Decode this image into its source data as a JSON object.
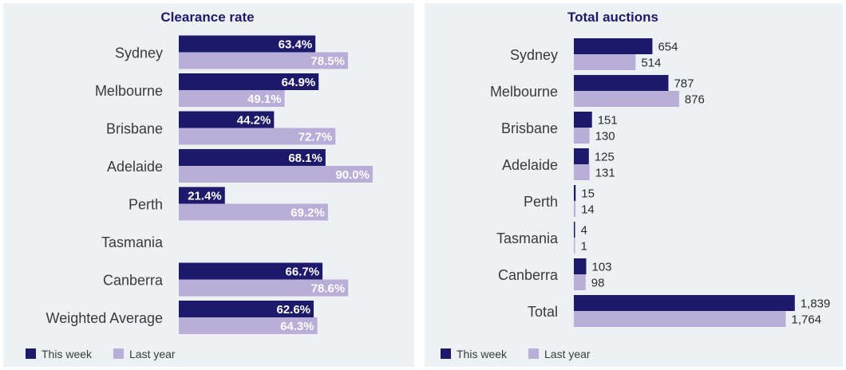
{
  "colors": {
    "this_week": "#1d1a6b",
    "last_year": "#b9aed8"
  },
  "legend": {
    "this_week": "This week",
    "last_year": "Last year"
  },
  "chart_data": [
    {
      "type": "bar",
      "orientation": "horizontal",
      "title": "Clearance rate",
      "categories": [
        "Sydney",
        "Melbourne",
        "Brisbane",
        "Adelaide",
        "Perth",
        "Tasmania",
        "Canberra",
        "Weighted Average"
      ],
      "series": [
        {
          "name": "This week",
          "values": [
            63.4,
            64.9,
            44.2,
            68.1,
            21.4,
            null,
            66.7,
            62.6
          ],
          "labels": [
            "63.4%",
            "64.9%",
            "44.2%",
            "68.1%",
            "21.4%",
            "",
            "66.7%",
            "62.6%"
          ]
        },
        {
          "name": "Last year",
          "values": [
            78.5,
            49.1,
            72.7,
            90.0,
            69.2,
            null,
            78.6,
            64.3
          ],
          "labels": [
            "78.5%",
            "49.1%",
            "72.7%",
            "90.0%",
            "69.2%",
            "",
            "78.6%",
            "64.3%"
          ]
        }
      ],
      "xlim": [
        0,
        100
      ],
      "label_position": "inside-end",
      "grid": false,
      "legend_position": "bottom-left"
    },
    {
      "type": "bar",
      "orientation": "horizontal",
      "title": "Total auctions",
      "categories": [
        "Sydney",
        "Melbourne",
        "Brisbane",
        "Adelaide",
        "Perth",
        "Tasmania",
        "Canberra",
        "Total"
      ],
      "series": [
        {
          "name": "This week",
          "values": [
            654,
            787,
            151,
            125,
            15,
            4,
            103,
            1839
          ],
          "labels": [
            "654",
            "787",
            "151",
            "125",
            "15",
            "4",
            "103",
            "1,839"
          ]
        },
        {
          "name": "Last year",
          "values": [
            514,
            876,
            130,
            131,
            14,
            1,
            98,
            1764
          ],
          "labels": [
            "514",
            "876",
            "130",
            "131",
            "14",
            "1",
            "98",
            "1,764"
          ]
        }
      ],
      "xlim": [
        0,
        1880
      ],
      "label_position": "outside-end",
      "grid": false,
      "legend_position": "bottom-left"
    }
  ]
}
